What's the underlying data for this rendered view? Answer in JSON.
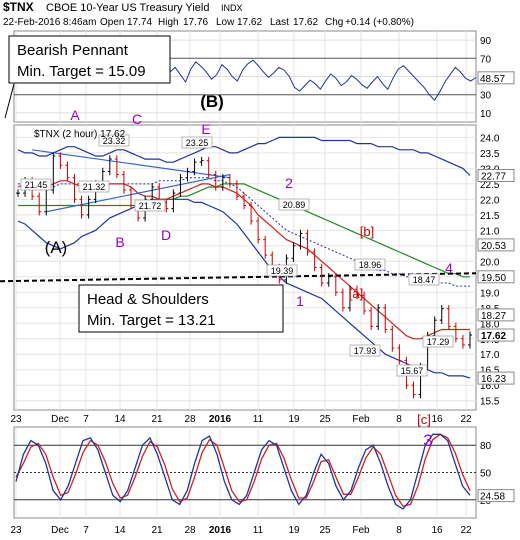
{
  "header": {
    "symbol": "$TNX",
    "name": "CBOE 10-Year US Treasury Yield",
    "exchange": "INDX",
    "date": "22-Feb-2016 8:46am",
    "open_label": "Open",
    "open": "17.74",
    "high_label": "High",
    "high": "17.76",
    "low_label": "Low",
    "low": "17.62",
    "last_label": "Last",
    "last": "17.62",
    "chg_label": "Chg",
    "chg": "+0.14 (+0.80%)"
  },
  "callouts": {
    "pennant_title": "Bearish Pennant",
    "pennant_target": "Min. Target = 15.09",
    "hs_title": "Head & Shoulders",
    "hs_target": "Min. Target = 13.21"
  },
  "price_legend": "$TNX (2 hour) 17.62",
  "colors": {
    "up_bar": "#000000",
    "down_bar": "#cc0000",
    "ma_red": "#cc2222",
    "ma_green": "#228822",
    "band_blue": "#223399",
    "wave_purple": "#9900cc",
    "wave_red": "#cc0000",
    "trendline": "#3366cc"
  },
  "chart_data": [
    {
      "type": "line",
      "panel": "rsi",
      "y_ticks": [
        "90",
        "70",
        "50",
        "30",
        "10"
      ],
      "last_value": "48.57",
      "ylim": [
        0,
        100
      ],
      "values": [
        55,
        60,
        52,
        44,
        58,
        66,
        61,
        55,
        47,
        52,
        63,
        58,
        50,
        45,
        57,
        64,
        68,
        62,
        55,
        49,
        54,
        60,
        57,
        50,
        38,
        34,
        40,
        46,
        42,
        36,
        45,
        53,
        48,
        40,
        44,
        51,
        47,
        41,
        37,
        44,
        50,
        42,
        36,
        48,
        58,
        62,
        56,
        50,
        44,
        38,
        30,
        24,
        33,
        44,
        52,
        60,
        55,
        48,
        45,
        49
      ]
    },
    {
      "type": "line",
      "panel": "price",
      "title": "$TNX (2 hour) 17.62",
      "y_ticks": [
        "24.0",
        "23.5",
        "23.0",
        "22.5",
        "22.0",
        "21.5",
        "21.0",
        "20.5",
        "20.0",
        "19.5",
        "19.0",
        "18.5",
        "18.0",
        "17.5",
        "17.0",
        "16.5",
        "16.0",
        "15.5"
      ],
      "ylim": [
        15.2,
        24.4
      ],
      "x_tick_labels": [
        "23",
        "Dec",
        "7",
        "14",
        "21",
        "28",
        "2016",
        "11",
        "19",
        "25",
        "Feb",
        "8",
        "16",
        "22"
      ],
      "right_labels": [
        "22.77",
        "20.53",
        "19.50",
        "18.27",
        "17.62",
        "16.23"
      ],
      "point_labels": [
        "23.32",
        "23.25",
        "21.45",
        "21.32",
        "21.72",
        "20.89",
        "19.39",
        "18.96",
        "17.93",
        "18.47",
        "17.29",
        "15.67"
      ],
      "wave_labels": [
        "A",
        "C",
        "E",
        "(B)",
        "(A)",
        "B",
        "D",
        "2",
        "1",
        "[b]",
        "[a]",
        "4",
        "[c]",
        "3"
      ],
      "price_path": [
        22.2,
        22.6,
        22.1,
        21.6,
        22.3,
        23.4,
        23.1,
        22.7,
        22.0,
        21.5,
        22.0,
        22.5,
        22.9,
        23.3,
        22.8,
        22.3,
        21.8,
        21.4,
        22.0,
        22.4,
        21.9,
        21.7,
        22.2,
        22.7,
        22.9,
        23.2,
        23.25,
        22.8,
        22.4,
        22.7,
        22.5,
        22.1,
        21.8,
        21.3,
        20.7,
        20.2,
        19.8,
        19.4,
        20.1,
        20.5,
        20.9,
        20.3,
        19.8,
        19.3,
        19.5,
        19.0,
        18.5,
        19.1,
        18.9,
        18.4,
        17.9,
        18.5,
        17.8,
        17.2,
        16.8,
        16.0,
        15.7,
        16.6,
        17.6,
        18.1,
        18.47,
        17.9,
        17.5,
        17.3,
        17.62
      ],
      "ma_red": [
        22.4,
        22.5,
        22.5,
        22.4,
        22.4,
        22.5,
        22.6,
        22.6,
        22.5,
        22.4,
        22.3,
        22.3,
        22.4,
        22.5,
        22.5,
        22.5,
        22.4,
        22.2,
        22.1,
        22.1,
        22.0,
        22.0,
        22.1,
        22.2,
        22.3,
        22.4,
        22.5,
        22.5,
        22.4,
        22.4,
        22.3,
        22.2,
        22.0,
        21.8,
        21.5,
        21.3,
        21.1,
        20.9,
        20.7,
        20.6,
        20.5,
        20.4,
        20.2,
        20.0,
        19.8,
        19.6,
        19.4,
        19.2,
        19.0,
        18.8,
        18.6,
        18.4,
        18.2,
        18.0,
        17.8,
        17.6,
        17.5,
        17.5,
        17.6,
        17.7,
        17.8,
        17.8,
        17.8,
        17.8,
        17.8
      ],
      "ma_green": [
        21.8,
        21.8,
        21.8,
        21.8,
        21.8,
        21.8,
        21.8,
        21.8,
        21.8,
        21.8,
        21.8,
        21.8,
        21.8,
        21.8,
        21.8,
        21.8,
        21.8,
        21.8,
        21.9,
        21.9,
        21.9,
        22.0,
        22.0,
        22.1,
        22.1,
        22.2,
        22.3,
        22.4,
        22.4,
        22.5,
        22.5,
        22.5,
        22.5,
        22.4,
        22.3,
        22.2,
        22.1,
        22.0,
        21.9,
        21.8,
        21.7,
        21.6,
        21.5,
        21.4,
        21.3,
        21.2,
        21.1,
        21.0,
        20.9,
        20.8,
        20.7,
        20.6,
        20.5,
        20.4,
        20.3,
        20.2,
        20.1,
        20.0,
        19.9,
        19.8,
        19.7,
        19.6,
        19.6,
        19.5,
        19.5
      ],
      "band_upper": [
        23.6,
        23.5,
        23.5,
        23.4,
        23.4,
        23.5,
        23.6,
        23.7,
        23.7,
        23.6,
        23.5,
        23.4,
        23.4,
        23.5,
        23.6,
        23.6,
        23.5,
        23.4,
        23.3,
        23.3,
        23.3,
        23.2,
        23.2,
        23.3,
        23.4,
        23.5,
        23.6,
        23.7,
        23.7,
        23.6,
        23.5,
        23.5,
        23.6,
        23.7,
        23.8,
        23.8,
        23.9,
        24.0,
        24.0,
        24.0,
        24.0,
        24.0,
        24.0,
        23.9,
        23.9,
        23.9,
        23.9,
        23.9,
        23.8,
        23.8,
        23.8,
        23.7,
        23.7,
        23.7,
        23.6,
        23.6,
        23.6,
        23.5,
        23.5,
        23.4,
        23.3,
        23.2,
        23.1,
        23.0,
        22.77
      ],
      "band_lower": [
        21.3,
        21.2,
        21.0,
        20.8,
        20.6,
        20.5,
        20.4,
        20.5,
        20.6,
        20.8,
        20.9,
        21.0,
        21.2,
        21.4,
        21.5,
        21.6,
        21.7,
        21.8,
        21.9,
        22.0,
        22.0,
        22.0,
        22.0,
        22.0,
        22.0,
        21.9,
        21.9,
        21.8,
        21.7,
        21.6,
        21.4,
        21.2,
        20.9,
        20.6,
        20.3,
        20.0,
        19.7,
        19.5,
        19.3,
        19.2,
        19.1,
        19.0,
        18.9,
        18.8,
        18.6,
        18.4,
        18.2,
        18.0,
        17.8,
        17.6,
        17.4,
        17.2,
        17.0,
        16.9,
        16.8,
        16.7,
        16.6,
        16.5,
        16.5,
        16.4,
        16.4,
        16.3,
        16.3,
        16.3,
        16.23
      ],
      "band_mid_dotted": [
        22.5,
        22.5,
        22.4,
        22.4,
        22.4,
        22.4,
        22.5,
        22.5,
        22.5,
        22.5,
        22.4,
        22.4,
        22.4,
        22.5,
        22.5,
        22.5,
        22.5,
        22.5,
        22.5,
        22.5,
        22.6,
        22.6,
        22.6,
        22.6,
        22.7,
        22.7,
        22.7,
        22.7,
        22.6,
        22.6,
        22.5,
        22.4,
        22.2,
        22.0,
        21.8,
        21.6,
        21.4,
        21.2,
        21.0,
        20.9,
        20.8,
        20.7,
        20.6,
        20.5,
        20.4,
        20.3,
        20.2,
        20.1,
        20.0,
        19.9,
        19.8,
        19.7,
        19.7,
        19.6,
        19.6,
        19.5,
        19.5,
        19.4,
        19.4,
        19.3,
        19.3,
        19.3,
        19.2,
        19.2,
        19.2
      ],
      "neckline": 19.55
    },
    {
      "type": "line",
      "panel": "stochastic",
      "y_ticks": [
        "80",
        "50",
        "20"
      ],
      "last_value": "24.58",
      "ylim": [
        0,
        100
      ],
      "fast": [
        40,
        70,
        85,
        80,
        60,
        30,
        20,
        35,
        60,
        85,
        88,
        75,
        50,
        25,
        18,
        30,
        55,
        80,
        88,
        70,
        45,
        20,
        15,
        30,
        60,
        85,
        90,
        70,
        40,
        20,
        15,
        25,
        50,
        75,
        85,
        80,
        55,
        30,
        15,
        25,
        50,
        70,
        60,
        35,
        20,
        30,
        55,
        75,
        80,
        60,
        35,
        15,
        10,
        20,
        50,
        80,
        92,
        92,
        85,
        60,
        35,
        25
      ],
      "slow": [
        45,
        60,
        78,
        82,
        70,
        45,
        25,
        28,
        48,
        72,
        85,
        80,
        62,
        38,
        22,
        25,
        45,
        68,
        84,
        78,
        58,
        32,
        18,
        22,
        45,
        72,
        86,
        80,
        55,
        30,
        18,
        20,
        40,
        65,
        80,
        82,
        66,
        42,
        22,
        22,
        40,
        62,
        64,
        45,
        26,
        26,
        45,
        66,
        78,
        70,
        48,
        25,
        13,
        15,
        35,
        65,
        86,
        92,
        88,
        72,
        48,
        30
      ]
    }
  ]
}
